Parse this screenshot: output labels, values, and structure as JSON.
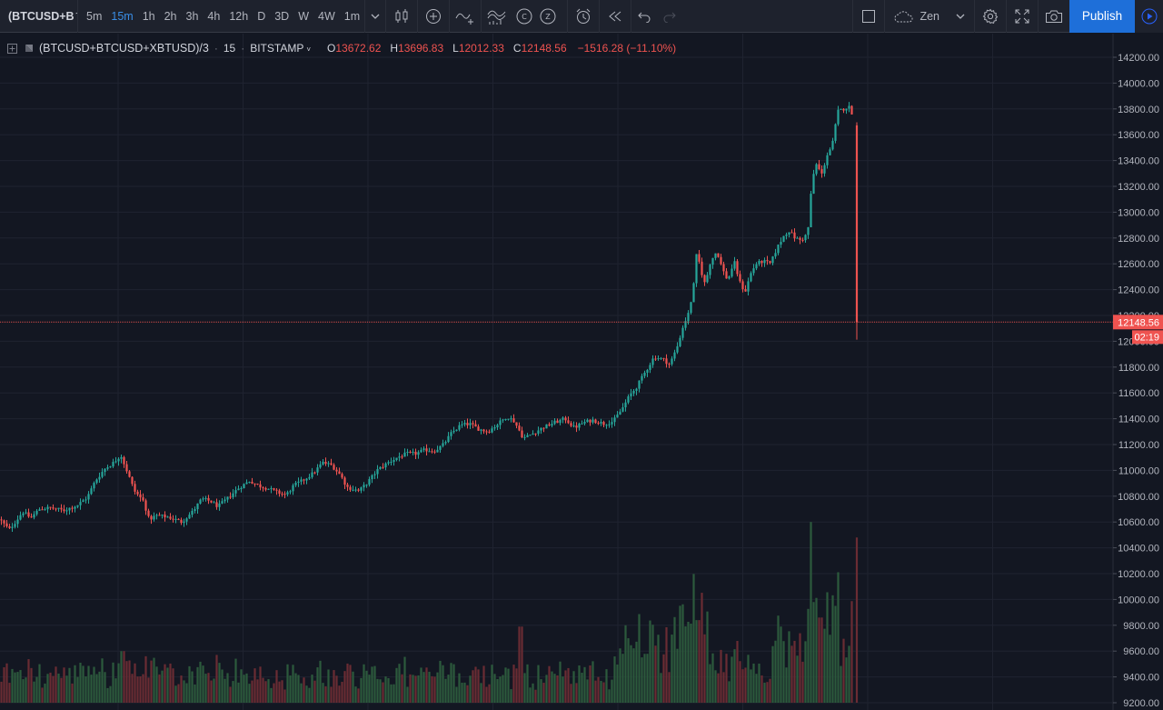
{
  "toolbar": {
    "symbol": "(BTCUSD+B",
    "intervals": [
      {
        "label": "5m",
        "active": false
      },
      {
        "label": "15m",
        "active": true
      },
      {
        "label": "1h",
        "active": false
      },
      {
        "label": "2h",
        "active": false
      },
      {
        "label": "3h",
        "active": false
      },
      {
        "label": "4h",
        "active": false
      },
      {
        "label": "12h",
        "active": false
      },
      {
        "label": "D",
        "active": false
      },
      {
        "label": "3D",
        "active": false
      },
      {
        "label": "W",
        "active": false
      },
      {
        "label": "4W",
        "active": false
      },
      {
        "label": "1m",
        "active": false
      }
    ],
    "layout_name": "Zen",
    "publish_label": "Publish"
  },
  "legend": {
    "symbol": "(BTCUSD+BTCUSD+XBTUSD)/3",
    "interval": "15",
    "exchange": "BITSTAMP",
    "open_key": "O",
    "open": "13672.62",
    "high_key": "H",
    "high": "13696.83",
    "low_key": "L",
    "low": "12012.33",
    "close_key": "C",
    "close": "12148.56",
    "change": "−1516.28 (−11.10%)"
  },
  "colors": {
    "up": "#26a69a",
    "down": "#ef5350",
    "background": "#131722",
    "grid": "#2a2e39",
    "accent": "#1e6fd9"
  },
  "chart_data": {
    "type": "candlestick",
    "title": "",
    "ylim": [
      9200,
      14200
    ],
    "y_ticks": [
      9200,
      9400,
      9600,
      9800,
      10000,
      10200,
      10400,
      10600,
      10800,
      11000,
      11200,
      11400,
      11600,
      11800,
      12000,
      12200,
      12400,
      12600,
      12800,
      13000,
      13200,
      13400,
      13600,
      13800,
      14000,
      14200
    ],
    "last_price": "12148.56",
    "countdown": "02:19",
    "trend_points": [
      [
        0,
        10620
      ],
      [
        10,
        10540
      ],
      [
        18,
        10610
      ],
      [
        25,
        10680
      ],
      [
        34,
        10630
      ],
      [
        43,
        10700
      ],
      [
        55,
        10710
      ],
      [
        70,
        10690
      ],
      [
        85,
        10730
      ],
      [
        96,
        10790
      ],
      [
        105,
        10920
      ],
      [
        115,
        11010
      ],
      [
        125,
        11060
      ],
      [
        133,
        11120
      ],
      [
        140,
        10990
      ],
      [
        148,
        10840
      ],
      [
        158,
        10760
      ],
      [
        164,
        10620
      ],
      [
        172,
        10650
      ],
      [
        185,
        10640
      ],
      [
        200,
        10600
      ],
      [
        212,
        10680
      ],
      [
        222,
        10780
      ],
      [
        232,
        10760
      ],
      [
        240,
        10720
      ],
      [
        250,
        10780
      ],
      [
        262,
        10860
      ],
      [
        275,
        10920
      ],
      [
        285,
        10880
      ],
      [
        295,
        10860
      ],
      [
        305,
        10830
      ],
      [
        315,
        10810
      ],
      [
        323,
        10880
      ],
      [
        335,
        10930
      ],
      [
        345,
        10980
      ],
      [
        355,
        11060
      ],
      [
        365,
        11040
      ],
      [
        375,
        10960
      ],
      [
        382,
        10870
      ],
      [
        395,
        10840
      ],
      [
        405,
        10910
      ],
      [
        415,
        11000
      ],
      [
        425,
        11050
      ],
      [
        437,
        11100
      ],
      [
        448,
        11130
      ],
      [
        458,
        11130
      ],
      [
        468,
        11160
      ],
      [
        478,
        11150
      ],
      [
        488,
        11200
      ],
      [
        497,
        11290
      ],
      [
        507,
        11350
      ],
      [
        517,
        11360
      ],
      [
        527,
        11320
      ],
      [
        537,
        11300
      ],
      [
        548,
        11360
      ],
      [
        558,
        11420
      ],
      [
        566,
        11380
      ],
      [
        576,
        11250
      ],
      [
        585,
        11280
      ],
      [
        597,
        11330
      ],
      [
        610,
        11370
      ],
      [
        622,
        11400
      ],
      [
        632,
        11330
      ],
      [
        642,
        11370
      ],
      [
        652,
        11390
      ],
      [
        665,
        11360
      ],
      [
        675,
        11380
      ],
      [
        685,
        11480
      ],
      [
        693,
        11580
      ],
      [
        700,
        11640
      ],
      [
        710,
        11760
      ],
      [
        720,
        11880
      ],
      [
        730,
        11860
      ],
      [
        737,
        11820
      ],
      [
        745,
        11950
      ],
      [
        752,
        12120
      ],
      [
        758,
        12220
      ],
      [
        763,
        12400
      ],
      [
        767,
        12700
      ],
      [
        771,
        12560
      ],
      [
        776,
        12440
      ],
      [
        782,
        12620
      ],
      [
        789,
        12700
      ],
      [
        795,
        12560
      ],
      [
        801,
        12470
      ],
      [
        808,
        12620
      ],
      [
        814,
        12460
      ],
      [
        820,
        12380
      ],
      [
        826,
        12520
      ],
      [
        832,
        12600
      ],
      [
        840,
        12620
      ],
      [
        848,
        12600
      ],
      [
        855,
        12720
      ],
      [
        862,
        12810
      ],
      [
        868,
        12860
      ],
      [
        875,
        12800
      ],
      [
        882,
        12780
      ],
      [
        889,
        12840
      ],
      [
        894,
        13260
      ],
      [
        899,
        13380
      ],
      [
        904,
        13280
      ],
      [
        910,
        13440
      ],
      [
        916,
        13520
      ],
      [
        922,
        13780
      ],
      [
        928,
        13800
      ],
      [
        934,
        13820
      ],
      [
        939,
        13750
      ],
      [
        942,
        13620
      ],
      [
        943,
        12120
      ]
    ],
    "volume_highlights": [
      [
        135,
        9600
      ],
      [
        573,
        9790
      ],
      [
        768,
        9840
      ],
      [
        895,
        9980
      ],
      [
        903,
        9860
      ],
      [
        943,
        10480
      ]
    ]
  }
}
